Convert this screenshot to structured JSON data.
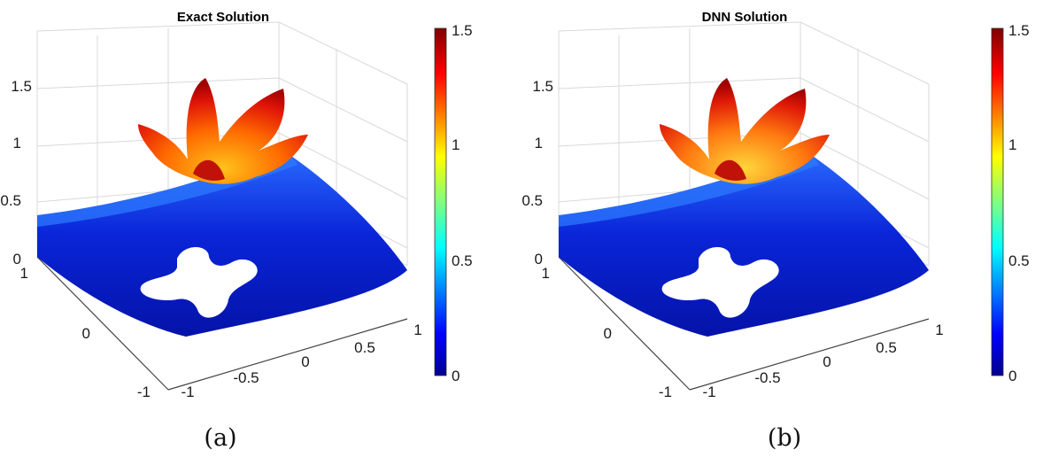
{
  "chart_data": [
    {
      "type": "surface",
      "title": "Exact Solution",
      "caption": "(a)",
      "x_ticks": [
        "-1",
        "-0.5",
        "0",
        "0.5",
        "1"
      ],
      "y_ticks": [
        "-1",
        "0",
        "1"
      ],
      "z_ticks": [
        "0",
        "0.5",
        "1",
        "1.5"
      ],
      "xlim": [
        -1,
        1
      ],
      "ylim": [
        -1,
        1
      ],
      "zlim": [
        0,
        1.5
      ],
      "colorbar": {
        "ticks": [
          "0",
          "0.5",
          "1",
          "1.5"
        ],
        "range": [
          0,
          1.5
        ],
        "colormap": "jet"
      },
      "grid": true
    },
    {
      "type": "surface",
      "title": "DNN Solution",
      "caption": "(b)",
      "x_ticks": [
        "-1",
        "-0.5",
        "0",
        "0.5",
        "1"
      ],
      "y_ticks": [
        "-1",
        "0",
        "1"
      ],
      "z_ticks": [
        "0",
        "0.5",
        "1",
        "1.5"
      ],
      "xlim": [
        -1,
        1
      ],
      "ylim": [
        -1,
        1
      ],
      "zlim": [
        0,
        1.5
      ],
      "colorbar": {
        "ticks": [
          "0",
          "0.5",
          "1",
          "1.5"
        ],
        "range": [
          0,
          1.5
        ],
        "colormap": "jet"
      },
      "grid": true
    }
  ]
}
